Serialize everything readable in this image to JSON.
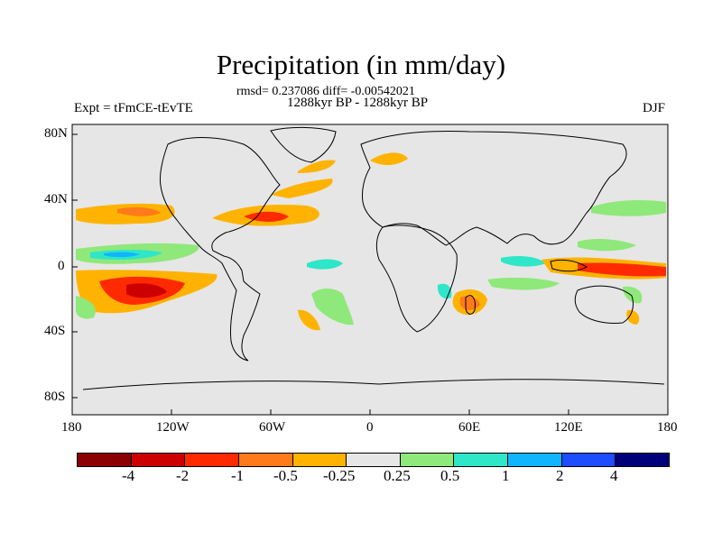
{
  "title": "Precipitation (in mm/day)",
  "stats_line": "rmsd= 0.237086 diff= -0.00542021",
  "period_line": "1288kyr BP - 1288kyr BP",
  "experiment_label": "Expt = tFmCE-tEvTE",
  "season": "DJF",
  "lat_labels": [
    "80N",
    "40N",
    "0",
    "40S",
    "80S"
  ],
  "lon_labels": [
    "180",
    "120W",
    "60W",
    "0",
    "60E",
    "120E",
    "180"
  ],
  "colorbar": {
    "labels": [
      "-4",
      "-2",
      "-1",
      "-0.5",
      "-0.25",
      "0.25",
      "0.5",
      "1",
      "2",
      "4"
    ],
    "colors": [
      "#8b0000",
      "#cc0000",
      "#ff2a00",
      "#ff7a1a",
      "#ffb300",
      "#e6e6e6",
      "#8fe87a",
      "#2ee6c8",
      "#10b4ff",
      "#1e4cff",
      "#00007a"
    ]
  },
  "colors": {
    "ocean": "#e6e6e6",
    "coast": "#000000"
  }
}
